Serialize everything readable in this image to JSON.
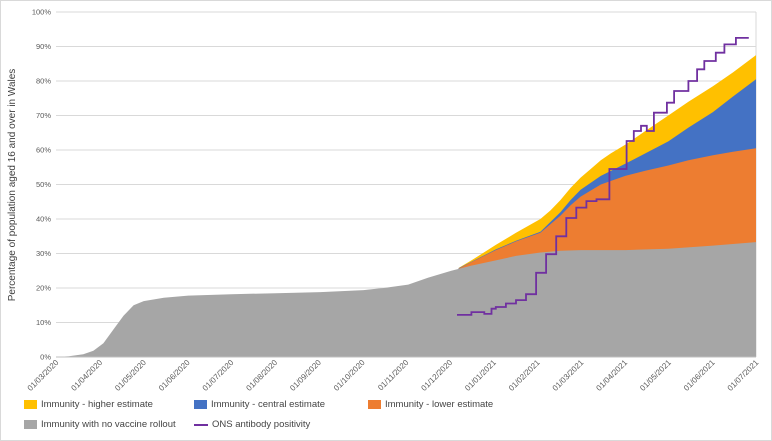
{
  "window": {
    "background": "#ffffff",
    "border_color": "#d9d9d9"
  },
  "chart_data": {
    "type": "area",
    "title": "",
    "xlabel": "",
    "ylabel": "Percentage of population aged 16 and over in Wales",
    "x_range": [
      "2020-03-01",
      "2021-07-01"
    ],
    "ylim": [
      0,
      100
    ],
    "y_tick_step": 10,
    "y_tick_labels": [
      "0%",
      "10%",
      "20%",
      "30%",
      "40%",
      "50%",
      "60%",
      "70%",
      "80%",
      "90%",
      "100%"
    ],
    "x_tick_labels": [
      "01/03/2020",
      "01/04/2020",
      "01/05/2020",
      "01/06/2020",
      "01/07/2020",
      "01/08/2020",
      "01/09/2020",
      "01/10/2020",
      "01/11/2020",
      "01/12/2020",
      "01/01/2021",
      "01/02/2021",
      "01/03/2021",
      "01/04/2021",
      "01/05/2021",
      "01/06/2021",
      "01/07/2021"
    ],
    "grid": {
      "show": true,
      "color": "#d9d9d9"
    },
    "axis_line_color": "#bfbfbf",
    "plot_right_border_color": "#d9d9d9",
    "tick_label_color": "#595959",
    "axis_title_color": "#404040",
    "series": [
      {
        "name": "Immunity - higher estimate",
        "type": "area",
        "color": "#ffc000",
        "points": [
          [
            "2020-12-06",
            25.8
          ],
          [
            "2020-12-15",
            28
          ],
          [
            "2021-01-01",
            32.5
          ],
          [
            "2021-01-15",
            36
          ],
          [
            "2021-02-01",
            40
          ],
          [
            "2021-02-08",
            42.5
          ],
          [
            "2021-02-15",
            45.5
          ],
          [
            "2021-02-22",
            49
          ],
          [
            "2021-03-01",
            52
          ],
          [
            "2021-03-08",
            54.5
          ],
          [
            "2021-03-15",
            57
          ],
          [
            "2021-03-22",
            59
          ],
          [
            "2021-04-01",
            61.5
          ],
          [
            "2021-04-15",
            65.5
          ],
          [
            "2021-05-01",
            70
          ],
          [
            "2021-05-15",
            74
          ],
          [
            "2021-06-01",
            78.5
          ],
          [
            "2021-06-15",
            82.5
          ],
          [
            "2021-07-01",
            87.5
          ]
        ]
      },
      {
        "name": "Immunity - central estimate",
        "type": "area",
        "color": "#4472c4",
        "points": [
          [
            "2020-12-06",
            25.7
          ],
          [
            "2020-12-15",
            27.6
          ],
          [
            "2021-01-01",
            31.2
          ],
          [
            "2021-01-15",
            33.7
          ],
          [
            "2021-02-01",
            36.3
          ],
          [
            "2021-02-15",
            42
          ],
          [
            "2021-02-22",
            45.5
          ],
          [
            "2021-03-01",
            48.5
          ],
          [
            "2021-03-15",
            52.5
          ],
          [
            "2021-04-01",
            56
          ],
          [
            "2021-04-15",
            59
          ],
          [
            "2021-05-01",
            62.5
          ],
          [
            "2021-05-15",
            66.5
          ],
          [
            "2021-06-01",
            71
          ],
          [
            "2021-06-15",
            75.5
          ],
          [
            "2021-07-01",
            80.5
          ]
        ]
      },
      {
        "name": "Immunity - lower estimate",
        "type": "area",
        "color": "#ed7d31",
        "points": [
          [
            "2020-12-06",
            25.6
          ],
          [
            "2020-12-15",
            27.5
          ],
          [
            "2021-01-01",
            31
          ],
          [
            "2021-01-15",
            33.5
          ],
          [
            "2021-02-01",
            36
          ],
          [
            "2021-02-15",
            41
          ],
          [
            "2021-02-22",
            44
          ],
          [
            "2021-03-01",
            46.5
          ],
          [
            "2021-03-15",
            50
          ],
          [
            "2021-04-01",
            52.5
          ],
          [
            "2021-04-15",
            54
          ],
          [
            "2021-05-01",
            55.5
          ],
          [
            "2021-05-15",
            57
          ],
          [
            "2021-06-01",
            58.5
          ],
          [
            "2021-06-15",
            59.5
          ],
          [
            "2021-07-01",
            60.5
          ]
        ]
      },
      {
        "name": "Immunity with no vaccine rollout",
        "type": "area",
        "color": "#a6a6a6",
        "points": [
          [
            "2020-03-01",
            0
          ],
          [
            "2020-03-10",
            0.2
          ],
          [
            "2020-03-20",
            0.8
          ],
          [
            "2020-03-27",
            1.8
          ],
          [
            "2020-04-03",
            4
          ],
          [
            "2020-04-10",
            8
          ],
          [
            "2020-04-17",
            12
          ],
          [
            "2020-04-24",
            15
          ],
          [
            "2020-05-01",
            16.2
          ],
          [
            "2020-05-15",
            17.2
          ],
          [
            "2020-06-01",
            17.8
          ],
          [
            "2020-07-01",
            18.2
          ],
          [
            "2020-08-01",
            18.5
          ],
          [
            "2020-09-01",
            18.8
          ],
          [
            "2020-10-01",
            19.4
          ],
          [
            "2020-10-15",
            20
          ],
          [
            "2020-11-01",
            21
          ],
          [
            "2020-11-15",
            23
          ],
          [
            "2020-12-01",
            25
          ],
          [
            "2020-12-15",
            26.5
          ],
          [
            "2021-01-01",
            28
          ],
          [
            "2021-01-15",
            29.3
          ],
          [
            "2021-02-01",
            30.3
          ],
          [
            "2021-02-15",
            30.8
          ],
          [
            "2021-03-01",
            31
          ],
          [
            "2021-04-01",
            31
          ],
          [
            "2021-05-01",
            31.4
          ],
          [
            "2021-06-01",
            32.3
          ],
          [
            "2021-07-01",
            33.3
          ]
        ]
      },
      {
        "name": "ONS antibody positivity",
        "type": "step-line",
        "color": "#7030a0",
        "stroke_width": 1.8,
        "points": [
          [
            "2020-12-05",
            12.2
          ],
          [
            "2020-12-15",
            13
          ],
          [
            "2020-12-24",
            12.5
          ],
          [
            "2020-12-29",
            14
          ],
          [
            "2021-01-01",
            14.5
          ],
          [
            "2021-01-08",
            15.5
          ],
          [
            "2021-01-15",
            16.5
          ],
          [
            "2021-01-22",
            18.2
          ],
          [
            "2021-01-29",
            24.4
          ],
          [
            "2021-02-05",
            29.8
          ],
          [
            "2021-02-12",
            35
          ],
          [
            "2021-02-19",
            40.3
          ],
          [
            "2021-02-26",
            43.3
          ],
          [
            "2021-03-05",
            45.2
          ],
          [
            "2021-03-12",
            45.7
          ],
          [
            "2021-03-21",
            54.5
          ],
          [
            "2021-04-02",
            62.6
          ],
          [
            "2021-04-07",
            65.5
          ],
          [
            "2021-04-12",
            67
          ],
          [
            "2021-04-16",
            65.5
          ],
          [
            "2021-04-21",
            70.8
          ],
          [
            "2021-04-30",
            73.7
          ],
          [
            "2021-05-05",
            77.1
          ],
          [
            "2021-05-15",
            80
          ],
          [
            "2021-05-21",
            83.4
          ],
          [
            "2021-05-26",
            85.8
          ],
          [
            "2021-06-03",
            88.2
          ],
          [
            "2021-06-09",
            90.6
          ],
          [
            "2021-06-17",
            92.5
          ],
          [
            "2021-06-26",
            92.5
          ]
        ]
      }
    ],
    "legend": {
      "position": "bottom",
      "items": [
        {
          "label": "Immunity - higher estimate",
          "swatch": "rect",
          "color": "#ffc000"
        },
        {
          "label": "Immunity - central estimate",
          "swatch": "rect",
          "color": "#4472c4"
        },
        {
          "label": "Immunity - lower estimate",
          "swatch": "rect",
          "color": "#ed7d31"
        },
        {
          "label": "Immunity with no vaccine rollout",
          "swatch": "rect",
          "color": "#a6a6a6"
        },
        {
          "label": "ONS antibody positivity",
          "swatch": "line",
          "color": "#7030a0"
        }
      ]
    }
  }
}
